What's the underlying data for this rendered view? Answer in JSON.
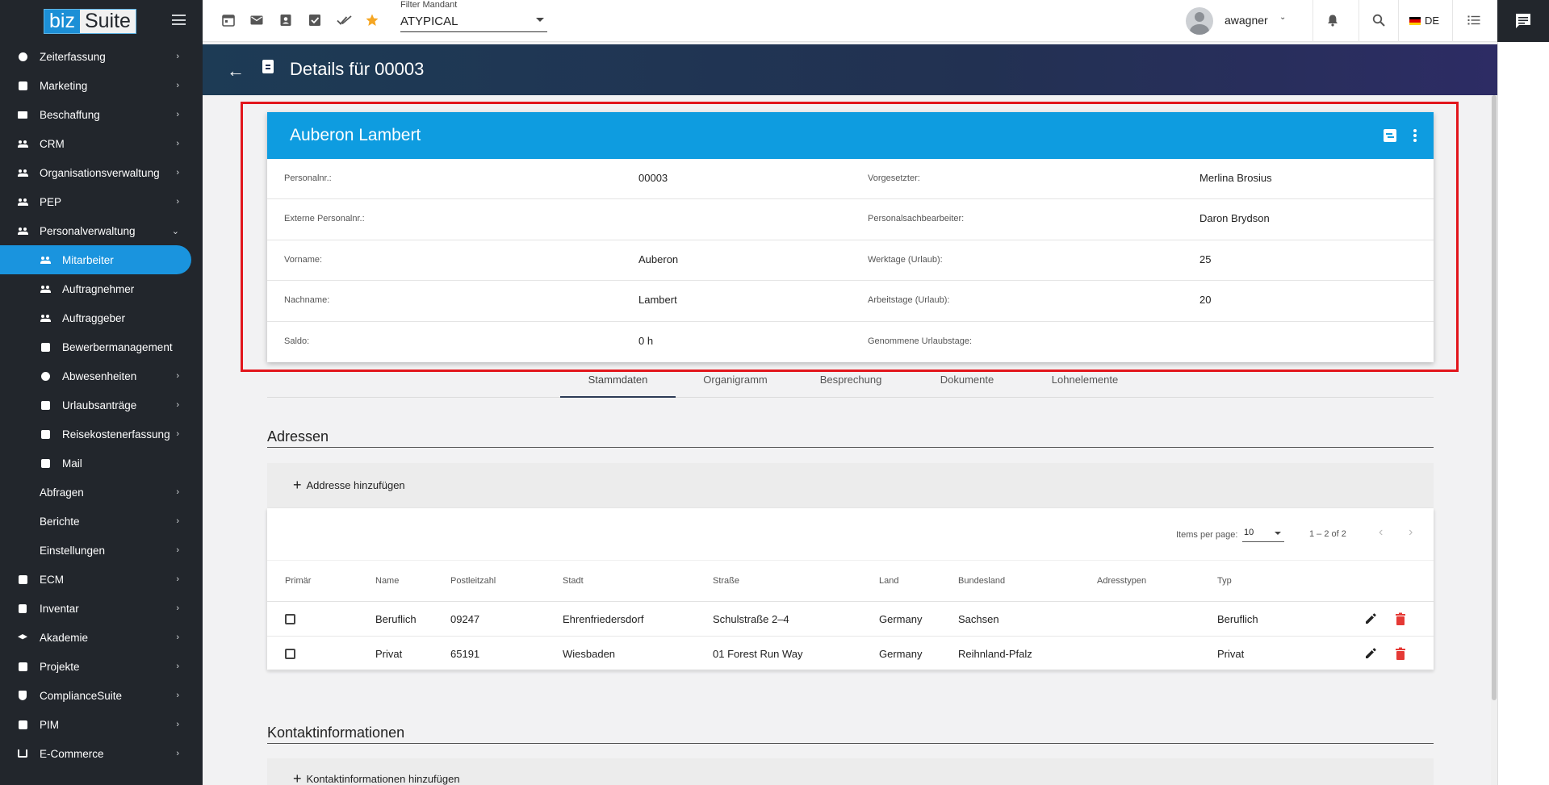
{
  "sidebar": {
    "logo_left": "biz",
    "logo_right": "Suite",
    "items": [
      {
        "label": "Zeiterfassung",
        "icon": "clock-icon",
        "chevron": "›"
      },
      {
        "label": "Marketing",
        "icon": "chart-icon",
        "chevron": "›"
      },
      {
        "label": "Beschaffung",
        "icon": "truck-icon",
        "chevron": "›"
      },
      {
        "label": "CRM",
        "icon": "people-icon",
        "chevron": "›"
      },
      {
        "label": "Organisationsverwaltung",
        "icon": "org-icon",
        "chevron": "›"
      },
      {
        "label": "PEP",
        "icon": "people-icon",
        "chevron": "›"
      },
      {
        "label": "Personalverwaltung",
        "icon": "people-icon",
        "chevron": "⌄"
      },
      {
        "label": "Mitarbeiter",
        "icon": "people-icon"
      },
      {
        "label": "Auftragnehmer",
        "icon": "people-icon"
      },
      {
        "label": "Auftraggeber",
        "icon": "people-icon"
      },
      {
        "label": "Bewerbermanagement",
        "icon": "briefcase-icon"
      },
      {
        "label": "Abwesenheiten",
        "icon": "absence-icon",
        "chevron": "›"
      },
      {
        "label": "Urlaubsanträge",
        "icon": "vacation-icon",
        "chevron": "›"
      },
      {
        "label": "Reisekostenerfassung",
        "icon": "clipboard-icon",
        "chevron": "›"
      },
      {
        "label": "Mail",
        "icon": "mail-icon"
      },
      {
        "label": "Abfragen",
        "chevron": "›"
      },
      {
        "label": "Berichte",
        "chevron": "›"
      },
      {
        "label": "Einstellungen",
        "chevron": "›"
      },
      {
        "label": "ECM",
        "icon": "ecm-icon",
        "chevron": "›"
      },
      {
        "label": "Inventar",
        "icon": "lock-icon",
        "chevron": "›"
      },
      {
        "label": "Akademie",
        "icon": "graduation-cap-icon",
        "chevron": "›"
      },
      {
        "label": "Projekte",
        "icon": "project-icon",
        "chevron": "›"
      },
      {
        "label": "ComplianceSuite",
        "icon": "shield-icon",
        "chevron": "›"
      },
      {
        "label": "PIM",
        "icon": "pim-icon",
        "chevron": "›"
      },
      {
        "label": "E-Commerce",
        "icon": "cart-icon",
        "chevron": "›"
      }
    ]
  },
  "topbar": {
    "filter_label": "Filter Mandant",
    "filter_value": "ATYPICAL",
    "username": "awagner",
    "user_caret": "⌄",
    "language": "DE",
    "flag_colors": [
      "#000000",
      "#dd0000",
      "#ffce00"
    ],
    "star_color": "#f5a623"
  },
  "header": {
    "title": "Details für 00003",
    "back_icon": "←"
  },
  "card": {
    "name": "Auberon Lambert",
    "rows": [
      {
        "label1": "Personalnr.:",
        "value1": "00003",
        "label2": "Vorgesetzter:",
        "value2": "Merlina Brosius"
      },
      {
        "label1": "Externe Personalnr.:",
        "value1": "",
        "label2": "Personalsachbearbeiter:",
        "value2": "Daron Brydson"
      },
      {
        "label1": "Vorname:",
        "value1": "Auberon",
        "label2": "Werktage (Urlaub):",
        "value2": "25"
      },
      {
        "label1": "Nachname:",
        "value1": "Lambert",
        "label2": "Arbeitstage (Urlaub):",
        "value2": "20"
      },
      {
        "label1": "Saldo:",
        "value1": "0 h",
        "label2": "Genommene Urlaubstage:",
        "value2": ""
      }
    ]
  },
  "tabs": [
    "Stammdaten",
    "Organigramm",
    "Besprechung",
    "Dokumente",
    "Lohnelemente"
  ],
  "addresses": {
    "title": "Adressen",
    "add_label": "Addresse hinzufügen",
    "paginator": {
      "items_per_page_label": "Items per page:",
      "items_per_page": "10",
      "range": "1 – 2 of 2",
      "prev": "‹",
      "next": "›"
    },
    "columns": [
      "Primär",
      "Name",
      "Postleitzahl",
      "Stadt",
      "Straße",
      "Land",
      "Bundesland",
      "Adresstypen",
      "Typ"
    ],
    "rows": [
      {
        "name": "Beruflich",
        "plz": "09247",
        "stadt": "Ehrenfriedersdorf",
        "strasse": "Schulstraße 2–4",
        "land": "Germany",
        "bundesland": "Sachsen",
        "adresstypen": "",
        "typ": "Beruflich"
      },
      {
        "name": "Privat",
        "plz": "65191",
        "stadt": "Wiesbaden",
        "strasse": "01 Forest Run Way",
        "land": "Germany",
        "bundesland": "Reihnland-Pfalz",
        "adresstypen": "",
        "typ": "Privat"
      }
    ]
  },
  "contacts": {
    "title": "Kontaktinformationen",
    "add_label": "Kontaktinformationen hinzufügen"
  },
  "colors": {
    "accent": "#0e9ce0",
    "sidebar_bg": "#22262c",
    "sidebar_active": "#1a94de",
    "highlight": "#e2161c",
    "delete": "#e53935"
  }
}
